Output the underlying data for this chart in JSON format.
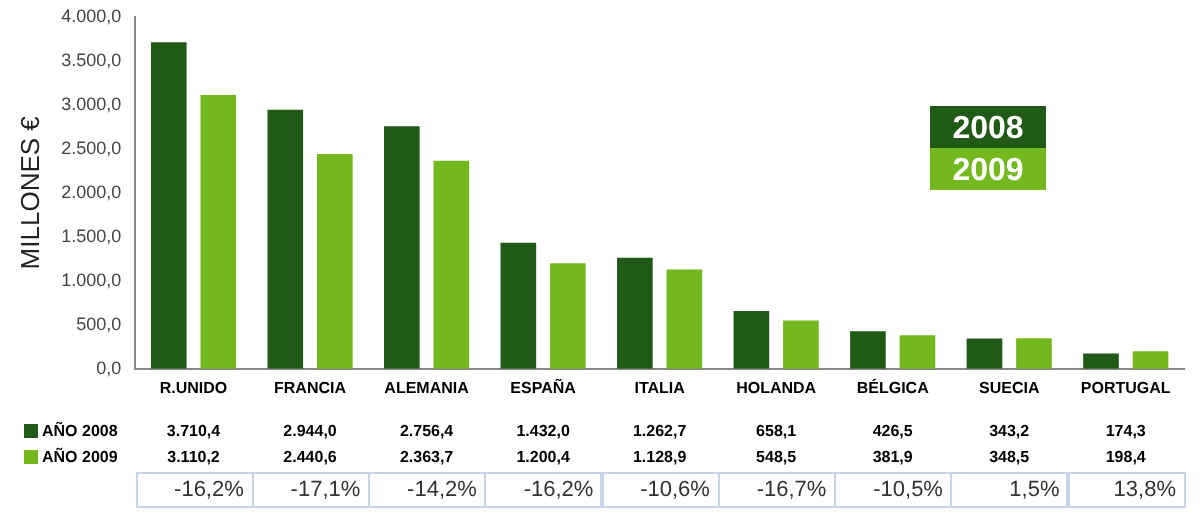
{
  "chart_data": {
    "type": "bar",
    "ylabel": "MILLONES €",
    "categories": [
      "R.UNIDO",
      "FRANCIA",
      "ALEMANIA",
      "ESPAÑA",
      "ITALIA",
      "HOLANDA",
      "BÉLGICA",
      "SUECIA",
      "PORTUGAL"
    ],
    "series": [
      {
        "name": "2008",
        "color": "#215a17",
        "values": [
          3710.4,
          2944.0,
          2756.4,
          1432.0,
          1262.7,
          658.1,
          426.5,
          343.2,
          174.3
        ],
        "value_labels": [
          "3.710,4",
          "2.944,0",
          "2.756,4",
          "1.432,0",
          "1.262,7",
          "658,1",
          "426,5",
          "343,2",
          "174,3"
        ]
      },
      {
        "name": "2009",
        "color": "#73b81e",
        "values": [
          3110.2,
          2440.6,
          2363.7,
          1200.4,
          1128.9,
          548.5,
          381.9,
          348.5,
          198.4
        ],
        "value_labels": [
          "3.110,2",
          "2.440,6",
          "2.363,7",
          "1.200,4",
          "1.128,9",
          "548,5",
          "381,9",
          "348,5",
          "198,4"
        ]
      }
    ],
    "ylim": [
      0,
      4000
    ],
    "yticks": [
      {
        "value": 0,
        "label": "0,0"
      },
      {
        "value": 500,
        "label": "500,0"
      },
      {
        "value": 1000,
        "label": "1.000,0"
      },
      {
        "value": 1500,
        "label": "1.500,0"
      },
      {
        "value": 2000,
        "label": "2.000,0"
      },
      {
        "value": 2500,
        "label": "2.500,0"
      },
      {
        "value": 3000,
        "label": "3.000,0"
      },
      {
        "value": 3500,
        "label": "3.500,0"
      },
      {
        "value": 4000,
        "label": "4.000,0"
      }
    ],
    "grid": false,
    "legend": "top right",
    "annotations": [
      "AÑO 2008",
      "AÑO 2009",
      "-16,2%",
      "-17,1%",
      "-14,2%",
      "-16,2%",
      "-10,6%",
      "-16,7%",
      "-10,5%",
      "1,5%",
      "13,8%"
    ]
  }
}
